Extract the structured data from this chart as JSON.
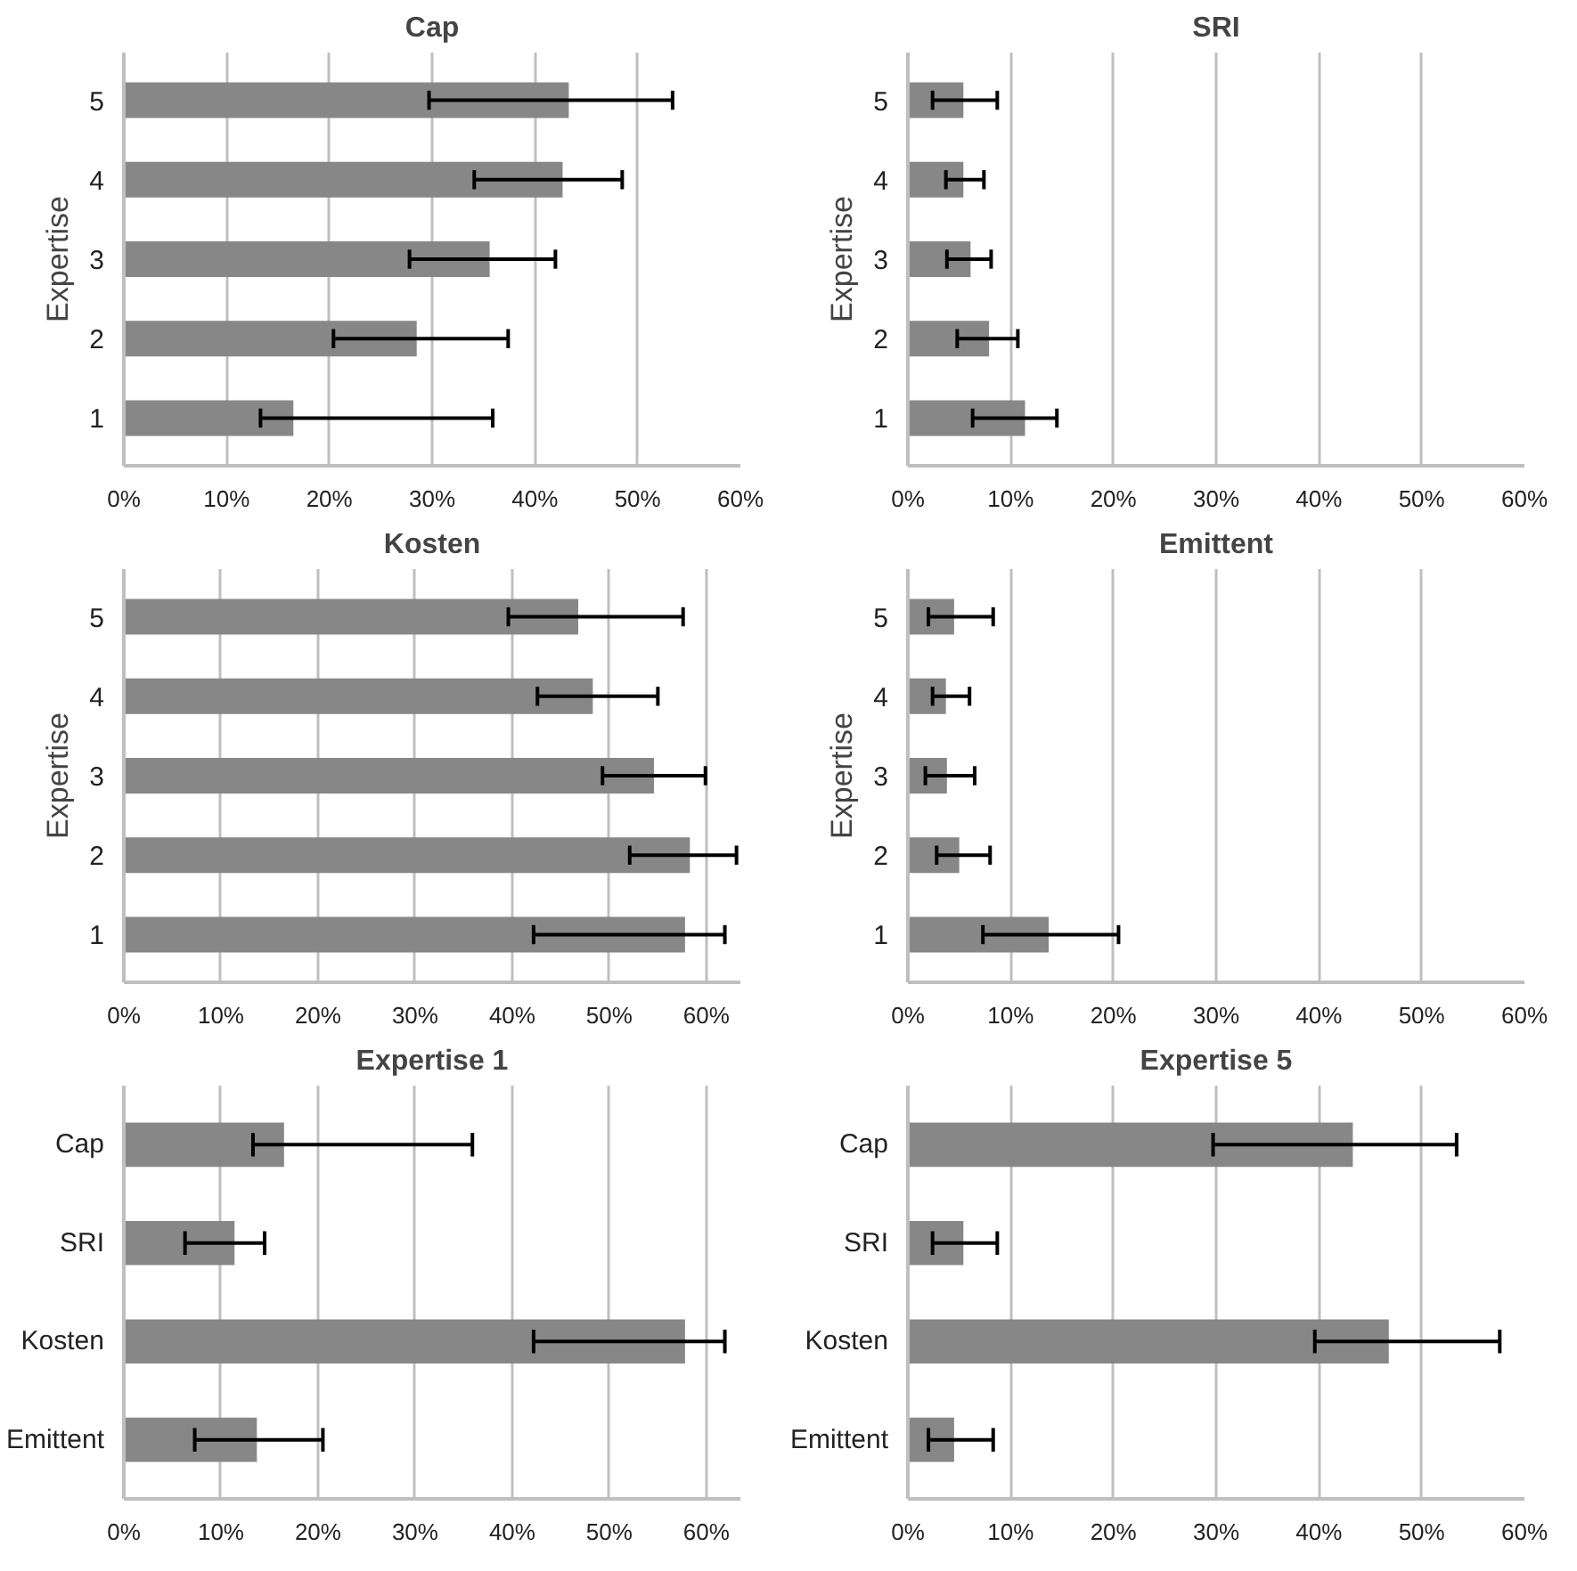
{
  "chart_data": [
    {
      "type": "bar",
      "orientation": "horizontal",
      "title": "Cap",
      "ylabel": "Expertise",
      "categories": [
        "5",
        "4",
        "3",
        "2",
        "1"
      ],
      "values": [
        43.3,
        42.7,
        35.6,
        28.5,
        16.5
      ],
      "errors": [
        [
          29.7,
          53.4
        ],
        [
          34.1,
          48.5
        ],
        [
          27.8,
          42.0
        ],
        [
          20.4,
          37.4
        ],
        [
          13.3,
          35.9
        ]
      ],
      "color": "#878787",
      "xlim": [
        0,
        60
      ],
      "xticks": [
        {
          "value": 0,
          "label": "0%"
        },
        {
          "value": 10,
          "label": "10%"
        },
        {
          "value": 20,
          "label": "20%"
        },
        {
          "value": 30,
          "label": "30%"
        },
        {
          "value": 40,
          "label": "40%"
        },
        {
          "value": 50,
          "label": "50%"
        },
        {
          "value": 60,
          "label": "60%"
        }
      ],
      "grid": "x"
    },
    {
      "type": "bar",
      "orientation": "horizontal",
      "title": "SRI",
      "ylabel": "Expertise",
      "categories": [
        "5",
        "4",
        "3",
        "2",
        "1"
      ],
      "values": [
        5.4,
        5.4,
        6.1,
        7.9,
        11.4
      ],
      "errors": [
        [
          2.4,
          8.7
        ],
        [
          3.7,
          7.4
        ],
        [
          3.8,
          8.1
        ],
        [
          4.8,
          10.7
        ],
        [
          6.3,
          14.5
        ]
      ],
      "color": "#878787",
      "xlim": [
        0,
        60
      ],
      "xticks": [
        {
          "value": 0,
          "label": "0%"
        },
        {
          "value": 10,
          "label": "10%"
        },
        {
          "value": 20,
          "label": "20%"
        },
        {
          "value": 30,
          "label": "30%"
        },
        {
          "value": 40,
          "label": "40%"
        },
        {
          "value": 50,
          "label": "50%"
        },
        {
          "value": 60,
          "label": "60%"
        }
      ],
      "grid": "x"
    },
    {
      "type": "bar",
      "orientation": "horizontal",
      "title": "Kosten",
      "ylabel": "Expertise",
      "categories": [
        "5",
        "4",
        "3",
        "2",
        "1"
      ],
      "values": [
        46.8,
        48.3,
        54.6,
        58.3,
        57.8
      ],
      "errors": [
        [
          39.6,
          57.6
        ],
        [
          42.6,
          55.0
        ],
        [
          49.3,
          59.9
        ],
        [
          52.1,
          63.1
        ],
        [
          42.2,
          61.9
        ]
      ],
      "color": "#878787",
      "xlim": [
        0,
        63.5
      ],
      "xticks": [
        {
          "value": 0,
          "label": "0%"
        },
        {
          "value": 10,
          "label": "10%"
        },
        {
          "value": 20,
          "label": "20%"
        },
        {
          "value": 30,
          "label": "30%"
        },
        {
          "value": 40,
          "label": "40%"
        },
        {
          "value": 50,
          "label": "50%"
        },
        {
          "value": 60,
          "label": "60%"
        }
      ],
      "grid": "x"
    },
    {
      "type": "bar",
      "orientation": "horizontal",
      "title": "Emittent",
      "ylabel": "Expertise",
      "categories": [
        "5",
        "4",
        "3",
        "2",
        "1"
      ],
      "values": [
        4.5,
        3.7,
        3.8,
        5.0,
        13.7
      ],
      "errors": [
        [
          2.0,
          8.3
        ],
        [
          2.4,
          6.0
        ],
        [
          1.7,
          6.5
        ],
        [
          2.8,
          8.0
        ],
        [
          7.3,
          20.5
        ]
      ],
      "color": "#878787",
      "xlim": [
        0,
        60
      ],
      "xticks": [
        {
          "value": 0,
          "label": "0%"
        },
        {
          "value": 10,
          "label": "10%"
        },
        {
          "value": 20,
          "label": "20%"
        },
        {
          "value": 30,
          "label": "30%"
        },
        {
          "value": 40,
          "label": "40%"
        },
        {
          "value": 50,
          "label": "50%"
        },
        {
          "value": 60,
          "label": "60%"
        }
      ],
      "grid": "x"
    },
    {
      "type": "bar",
      "orientation": "horizontal",
      "title": "Expertise 1",
      "categories": [
        "Cap",
        "SRI",
        "Kosten",
        "Emittent"
      ],
      "values": [
        16.5,
        11.4,
        57.8,
        13.7
      ],
      "errors": [
        [
          13.3,
          35.9
        ],
        [
          6.3,
          14.5
        ],
        [
          42.2,
          61.9
        ],
        [
          7.3,
          20.5
        ]
      ],
      "color": "#878787",
      "xlim": [
        0,
        63.5
      ],
      "xticks": [
        {
          "value": 0,
          "label": "0%"
        },
        {
          "value": 10,
          "label": "10%"
        },
        {
          "value": 20,
          "label": "20%"
        },
        {
          "value": 30,
          "label": "30%"
        },
        {
          "value": 40,
          "label": "40%"
        },
        {
          "value": 50,
          "label": "50%"
        },
        {
          "value": 60,
          "label": "60%"
        }
      ],
      "grid": "x"
    },
    {
      "type": "bar",
      "orientation": "horizontal",
      "title": "Expertise 5",
      "categories": [
        "Cap",
        "SRI",
        "Kosten",
        "Emittent"
      ],
      "values": [
        43.3,
        5.4,
        46.8,
        4.5
      ],
      "errors": [
        [
          29.7,
          53.4
        ],
        [
          2.4,
          8.7
        ],
        [
          39.6,
          57.6
        ],
        [
          2.0,
          8.3
        ]
      ],
      "color": "#878787",
      "xlim": [
        0,
        60
      ],
      "xticks": [
        {
          "value": 0,
          "label": "0%"
        },
        {
          "value": 10,
          "label": "10%"
        },
        {
          "value": 20,
          "label": "20%"
        },
        {
          "value": 30,
          "label": "30%"
        },
        {
          "value": 40,
          "label": "40%"
        },
        {
          "value": 50,
          "label": "50%"
        },
        {
          "value": 60,
          "label": "60%"
        }
      ],
      "grid": "x"
    }
  ]
}
